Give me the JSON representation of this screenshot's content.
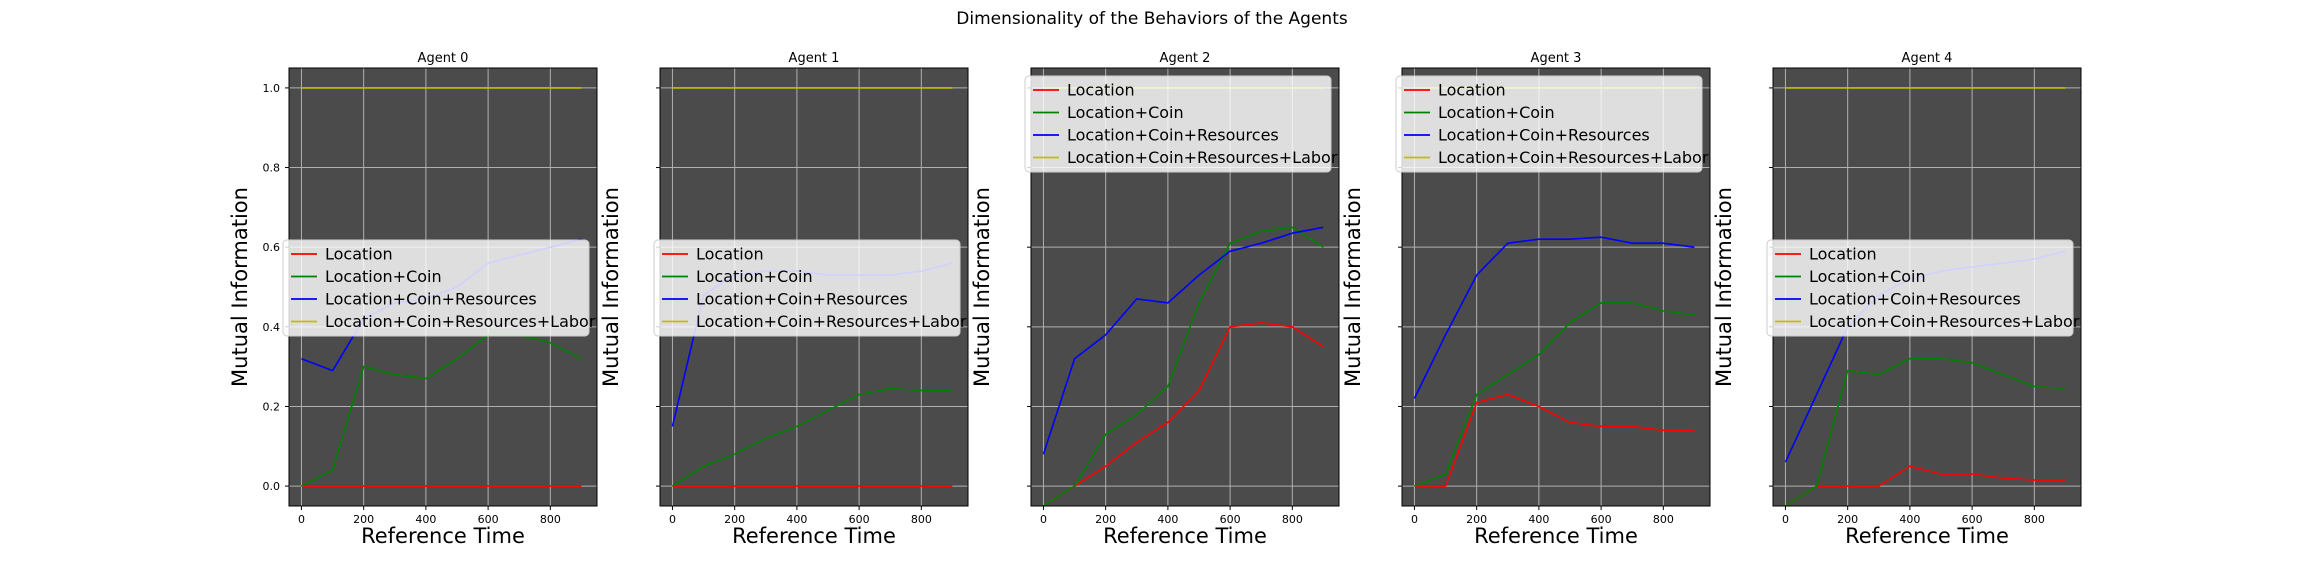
{
  "figure": {
    "title": "Dimensionality of the Behaviors of the Agents",
    "xlabel": "Reference Time",
    "ylabel": "Mutual Information",
    "colors": {
      "background": "#4b4b4b",
      "grid": "#b0b0b0"
    }
  },
  "chart_data": [
    {
      "type": "line",
      "title": "Agent 0",
      "xlabel": "Reference Time",
      "ylabel": "Mutual Information",
      "xlim": [
        -40,
        950
      ],
      "ylim": [
        -0.05,
        1.05
      ],
      "xticks": [
        "0",
        "200",
        "400",
        "600",
        "800"
      ],
      "yticks": [
        "0.0",
        "0.2",
        "0.4",
        "0.6",
        "0.8",
        "1.0"
      ],
      "show_ytick_labels": true,
      "show_ylabel": true,
      "grid": true,
      "legend": "center-left",
      "x": [
        0,
        100,
        200,
        300,
        400,
        500,
        600,
        700,
        800,
        900
      ],
      "series": [
        {
          "name": "Location",
          "color": "#ff0000",
          "values": [
            0.0,
            0.0,
            0.0,
            0.0,
            0.0,
            0.0,
            0.0,
            0.0,
            0.0,
            0.0
          ]
        },
        {
          "name": "Location+Coin",
          "color": "#008000",
          "values": [
            0.0,
            0.04,
            0.3,
            0.28,
            0.27,
            0.32,
            0.38,
            0.38,
            0.36,
            0.32
          ]
        },
        {
          "name": "Location+Coin+Resources",
          "color": "#0000ff",
          "values": [
            0.32,
            0.29,
            0.42,
            0.46,
            0.47,
            0.5,
            0.56,
            0.58,
            0.6,
            0.62
          ]
        },
        {
          "name": "Location+Coin+Resources+Labor",
          "color": "#bfbf00",
          "values": [
            1.0,
            1.0,
            1.0,
            1.0,
            1.0,
            1.0,
            1.0,
            1.0,
            1.0,
            1.0
          ]
        }
      ]
    },
    {
      "type": "line",
      "title": "Agent 1",
      "xlabel": "Reference Time",
      "ylabel": "Mutual Information",
      "xlim": [
        -40,
        950
      ],
      "ylim": [
        -0.05,
        1.05
      ],
      "xticks": [
        "0",
        "200",
        "400",
        "600",
        "800"
      ],
      "yticks": [
        "",
        "",
        "",
        "",
        "",
        ""
      ],
      "show_ytick_labels": false,
      "show_ylabel": true,
      "grid": true,
      "legend": "center-left",
      "x": [
        0,
        100,
        200,
        300,
        400,
        500,
        600,
        700,
        800,
        900
      ],
      "series": [
        {
          "name": "Location",
          "color": "#ff0000",
          "values": [
            0.0,
            0.0,
            0.0,
            0.0,
            0.0,
            0.0,
            0.0,
            0.0,
            0.0,
            0.0
          ]
        },
        {
          "name": "Location+Coin",
          "color": "#008000",
          "values": [
            0.0,
            0.05,
            0.08,
            0.12,
            0.15,
            0.19,
            0.23,
            0.245,
            0.24,
            0.24
          ]
        },
        {
          "name": "Location+Coin+Resources",
          "color": "#0000ff",
          "values": [
            0.15,
            0.48,
            0.53,
            0.54,
            0.54,
            0.53,
            0.53,
            0.53,
            0.54,
            0.56
          ]
        },
        {
          "name": "Location+Coin+Resources+Labor",
          "color": "#bfbf00",
          "values": [
            1.0,
            1.0,
            1.0,
            1.0,
            1.0,
            1.0,
            1.0,
            1.0,
            1.0,
            1.0
          ]
        }
      ]
    },
    {
      "type": "line",
      "title": "Agent 2",
      "xlabel": "Reference Time",
      "ylabel": "Mutual Information",
      "xlim": [
        -40,
        950
      ],
      "ylim": [
        -0.05,
        1.05
      ],
      "xticks": [
        "0",
        "200",
        "400",
        "600",
        "800"
      ],
      "yticks": [
        "",
        "",
        "",
        "",
        "",
        ""
      ],
      "show_ytick_labels": false,
      "show_ylabel": true,
      "grid": true,
      "legend": "top-left",
      "x": [
        0,
        100,
        200,
        300,
        400,
        500,
        600,
        700,
        800,
        900
      ],
      "series": [
        {
          "name": "Location",
          "color": "#ff0000",
          "values": [
            -0.05,
            0.0,
            0.05,
            0.11,
            0.16,
            0.24,
            0.4,
            0.41,
            0.4,
            0.35
          ]
        },
        {
          "name": "Location+Coin",
          "color": "#008000",
          "values": [
            -0.05,
            0.0,
            0.13,
            0.18,
            0.25,
            0.46,
            0.61,
            0.64,
            0.65,
            0.6
          ]
        },
        {
          "name": "Location+Coin+Resources",
          "color": "#0000ff",
          "values": [
            0.08,
            0.32,
            0.38,
            0.47,
            0.46,
            0.53,
            0.59,
            0.61,
            0.635,
            0.65
          ]
        },
        {
          "name": "Location+Coin+Resources+Labor",
          "color": "#bfbf00",
          "values": [
            1.0,
            1.0,
            1.0,
            1.0,
            1.0,
            1.0,
            1.0,
            1.0,
            1.0,
            1.0
          ]
        }
      ]
    },
    {
      "type": "line",
      "title": "Agent 3",
      "xlabel": "Reference Time",
      "ylabel": "Mutual Information",
      "xlim": [
        -40,
        950
      ],
      "ylim": [
        -0.05,
        1.05
      ],
      "xticks": [
        "0",
        "200",
        "400",
        "600",
        "800"
      ],
      "yticks": [
        "",
        "",
        "",
        "",
        "",
        ""
      ],
      "show_ytick_labels": false,
      "show_ylabel": true,
      "grid": true,
      "legend": "top-left",
      "x": [
        0,
        100,
        200,
        300,
        400,
        500,
        600,
        700,
        800,
        900
      ],
      "series": [
        {
          "name": "Location",
          "color": "#ff0000",
          "values": [
            0.0,
            0.0,
            0.21,
            0.23,
            0.2,
            0.16,
            0.15,
            0.15,
            0.14,
            0.14
          ]
        },
        {
          "name": "Location+Coin",
          "color": "#008000",
          "values": [
            0.0,
            0.03,
            0.23,
            0.28,
            0.33,
            0.41,
            0.46,
            0.46,
            0.44,
            0.43
          ]
        },
        {
          "name": "Location+Coin+Resources",
          "color": "#0000ff",
          "values": [
            0.22,
            0.38,
            0.53,
            0.61,
            0.62,
            0.62,
            0.625,
            0.61,
            0.61,
            0.6
          ]
        },
        {
          "name": "Location+Coin+Resources+Labor",
          "color": "#bfbf00",
          "values": [
            1.0,
            1.0,
            1.0,
            1.0,
            1.0,
            1.0,
            1.0,
            1.0,
            1.0,
            1.0
          ]
        }
      ]
    },
    {
      "type": "line",
      "title": "Agent 4",
      "xlabel": "Reference Time",
      "ylabel": "Mutual Information",
      "xlim": [
        -40,
        950
      ],
      "ylim": [
        -0.05,
        1.05
      ],
      "xticks": [
        "0",
        "200",
        "400",
        "600",
        "800"
      ],
      "yticks": [
        "",
        "",
        "",
        "",
        "",
        ""
      ],
      "show_ytick_labels": false,
      "show_ylabel": true,
      "grid": true,
      "legend": "center-left",
      "x": [
        0,
        100,
        200,
        300,
        400,
        500,
        600,
        700,
        800,
        900
      ],
      "series": [
        {
          "name": "Location",
          "color": "#ff0000",
          "values": [
            -0.05,
            0.0,
            0.0,
            0.0,
            0.05,
            0.03,
            0.03,
            0.02,
            0.015,
            0.015
          ]
        },
        {
          "name": "Location+Coin",
          "color": "#008000",
          "values": [
            -0.05,
            0.0,
            0.29,
            0.28,
            0.32,
            0.32,
            0.31,
            0.28,
            0.25,
            0.245
          ]
        },
        {
          "name": "Location+Coin+Resources",
          "color": "#0000ff",
          "values": [
            0.06,
            0.23,
            0.4,
            0.48,
            0.52,
            0.54,
            0.55,
            0.56,
            0.57,
            0.59
          ]
        },
        {
          "name": "Location+Coin+Resources+Labor",
          "color": "#bfbf00",
          "values": [
            1.0,
            1.0,
            1.0,
            1.0,
            1.0,
            1.0,
            1.0,
            1.0,
            1.0,
            1.0
          ]
        }
      ]
    }
  ]
}
